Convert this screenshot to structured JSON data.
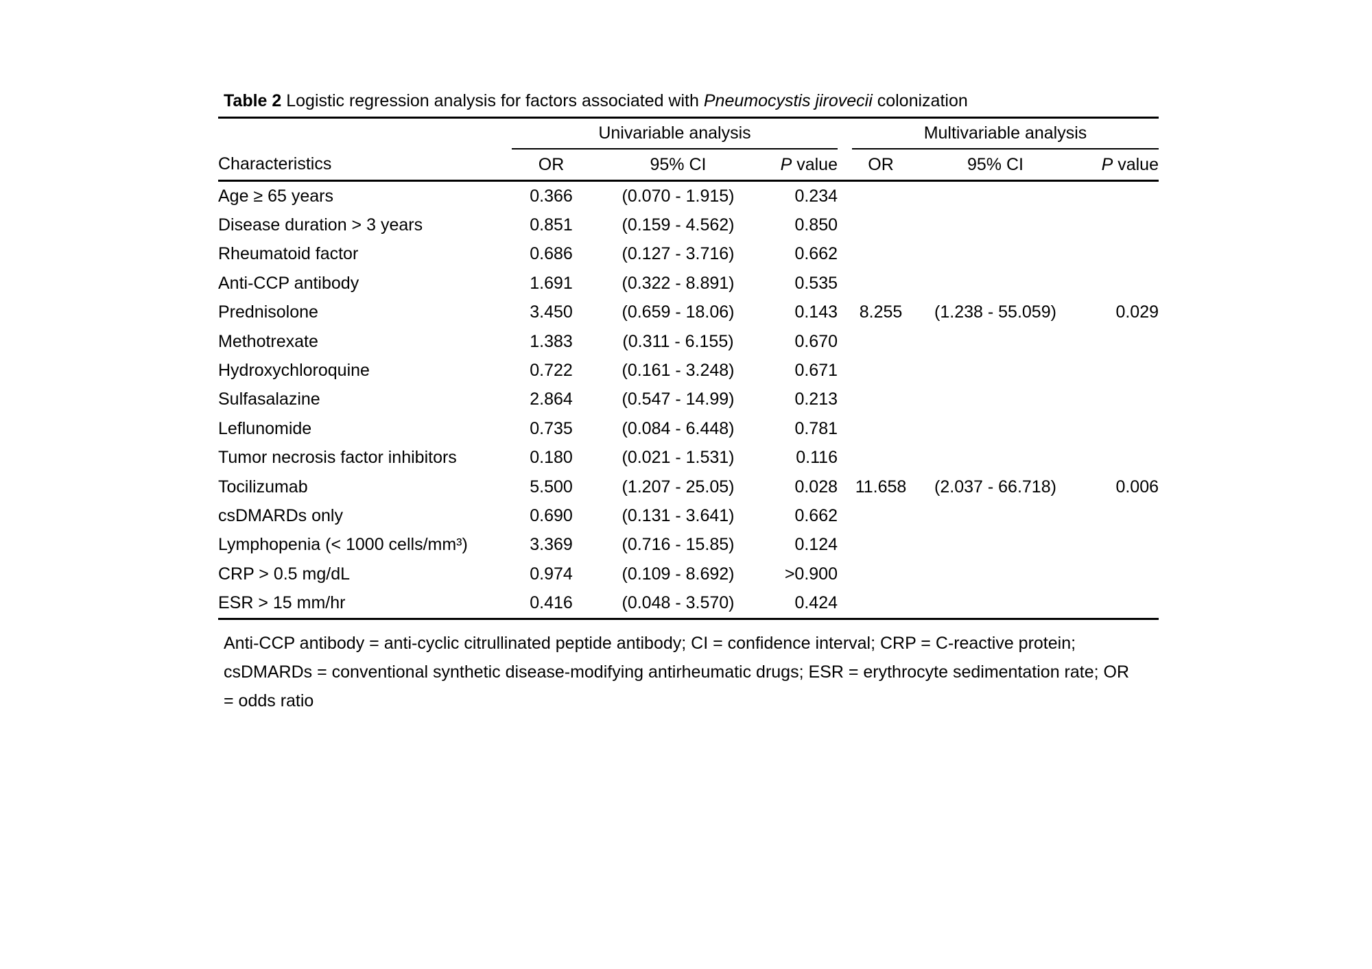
{
  "page": {
    "background": "#ffffff",
    "text_color": "#000000"
  },
  "table": {
    "title": {
      "label": "Table 2",
      "before_italic": " Logistic regression analysis for factors associated with ",
      "italic": "Pneumocystis jirovecii",
      "after_italic": " colonization"
    },
    "groups": [
      {
        "label": "Univariable analysis"
      },
      {
        "label": "Multivariable analysis"
      }
    ],
    "columns": {
      "characteristics": "Characteristics",
      "or": "OR",
      "ci": "95% CI",
      "p_italic": "P",
      "p_rest": " value"
    },
    "rows": [
      {
        "characteristic": "Age ≥ 65 years",
        "uni_or": "0.366",
        "uni_ci": "(0.070 - 1.915)",
        "uni_p": "0.234",
        "multi_or": "",
        "multi_ci": "",
        "multi_p": ""
      },
      {
        "characteristic": "Disease duration > 3 years",
        "uni_or": "0.851",
        "uni_ci": "(0.159 - 4.562)",
        "uni_p": "0.850",
        "multi_or": "",
        "multi_ci": "",
        "multi_p": ""
      },
      {
        "characteristic": "Rheumatoid factor",
        "uni_or": "0.686",
        "uni_ci": "(0.127 - 3.716)",
        "uni_p": "0.662",
        "multi_or": "",
        "multi_ci": "",
        "multi_p": ""
      },
      {
        "characteristic": "Anti-CCP antibody",
        "uni_or": "1.691",
        "uni_ci": "(0.322 - 8.891)",
        "uni_p": "0.535",
        "multi_or": "",
        "multi_ci": "",
        "multi_p": ""
      },
      {
        "characteristic": "Prednisolone",
        "uni_or": "3.450",
        "uni_ci": "(0.659 - 18.06)",
        "uni_p": "0.143",
        "multi_or": "8.255",
        "multi_ci": "(1.238 - 55.059)",
        "multi_p": "0.029"
      },
      {
        "characteristic": "Methotrexate",
        "uni_or": "1.383",
        "uni_ci": "(0.311 - 6.155)",
        "uni_p": "0.670",
        "multi_or": "",
        "multi_ci": "",
        "multi_p": ""
      },
      {
        "characteristic": "Hydroxychloroquine",
        "uni_or": "0.722",
        "uni_ci": "(0.161 - 3.248)",
        "uni_p": "0.671",
        "multi_or": "",
        "multi_ci": "",
        "multi_p": ""
      },
      {
        "characteristic": "Sulfasalazine",
        "uni_or": "2.864",
        "uni_ci": "(0.547 - 14.99)",
        "uni_p": "0.213",
        "multi_or": "",
        "multi_ci": "",
        "multi_p": ""
      },
      {
        "characteristic": "Leflunomide",
        "uni_or": "0.735",
        "uni_ci": "(0.084 - 6.448)",
        "uni_p": "0.781",
        "multi_or": "",
        "multi_ci": "",
        "multi_p": ""
      },
      {
        "characteristic": "Tumor necrosis factor inhibitors",
        "uni_or": "0.180",
        "uni_ci": "(0.021 - 1.531)",
        "uni_p": "0.116",
        "multi_or": "",
        "multi_ci": "",
        "multi_p": ""
      },
      {
        "characteristic": "Tocilizumab",
        "uni_or": "5.500",
        "uni_ci": "(1.207 - 25.05)",
        "uni_p": "0.028",
        "multi_or": "11.658",
        "multi_ci": "(2.037 - 66.718)",
        "multi_p": "0.006"
      },
      {
        "characteristic": "csDMARDs only",
        "uni_or": "0.690",
        "uni_ci": "(0.131 - 3.641)",
        "uni_p": "0.662",
        "multi_or": "",
        "multi_ci": "",
        "multi_p": ""
      },
      {
        "characteristic": "Lymphopenia (< 1000 cells/mm³)",
        "uni_or": "3.369",
        "uni_ci": "(0.716 - 15.85)",
        "uni_p": "0.124",
        "multi_or": "",
        "multi_ci": "",
        "multi_p": ""
      },
      {
        "characteristic": "CRP > 0.5 mg/dL",
        "uni_or": "0.974",
        "uni_ci": "(0.109 - 8.692)",
        "uni_p": ">0.900",
        "multi_or": "",
        "multi_ci": "",
        "multi_p": ""
      },
      {
        "characteristic": "ESR > 15 mm/hr",
        "uni_or": "0.416",
        "uni_ci": "(0.048 - 3.570)",
        "uni_p": "0.424",
        "multi_or": "",
        "multi_ci": "",
        "multi_p": ""
      }
    ],
    "footnote_lines": [
      "Anti-CCP antibody = anti-cyclic citrullinated peptide antibody; CI = confidence interval; CRP = C-reactive protein;",
      "csDMARDs = conventional synthetic disease-modifying antirheumatic drugs; ESR = erythrocyte sedimentation rate; OR",
      "= odds ratio"
    ]
  }
}
